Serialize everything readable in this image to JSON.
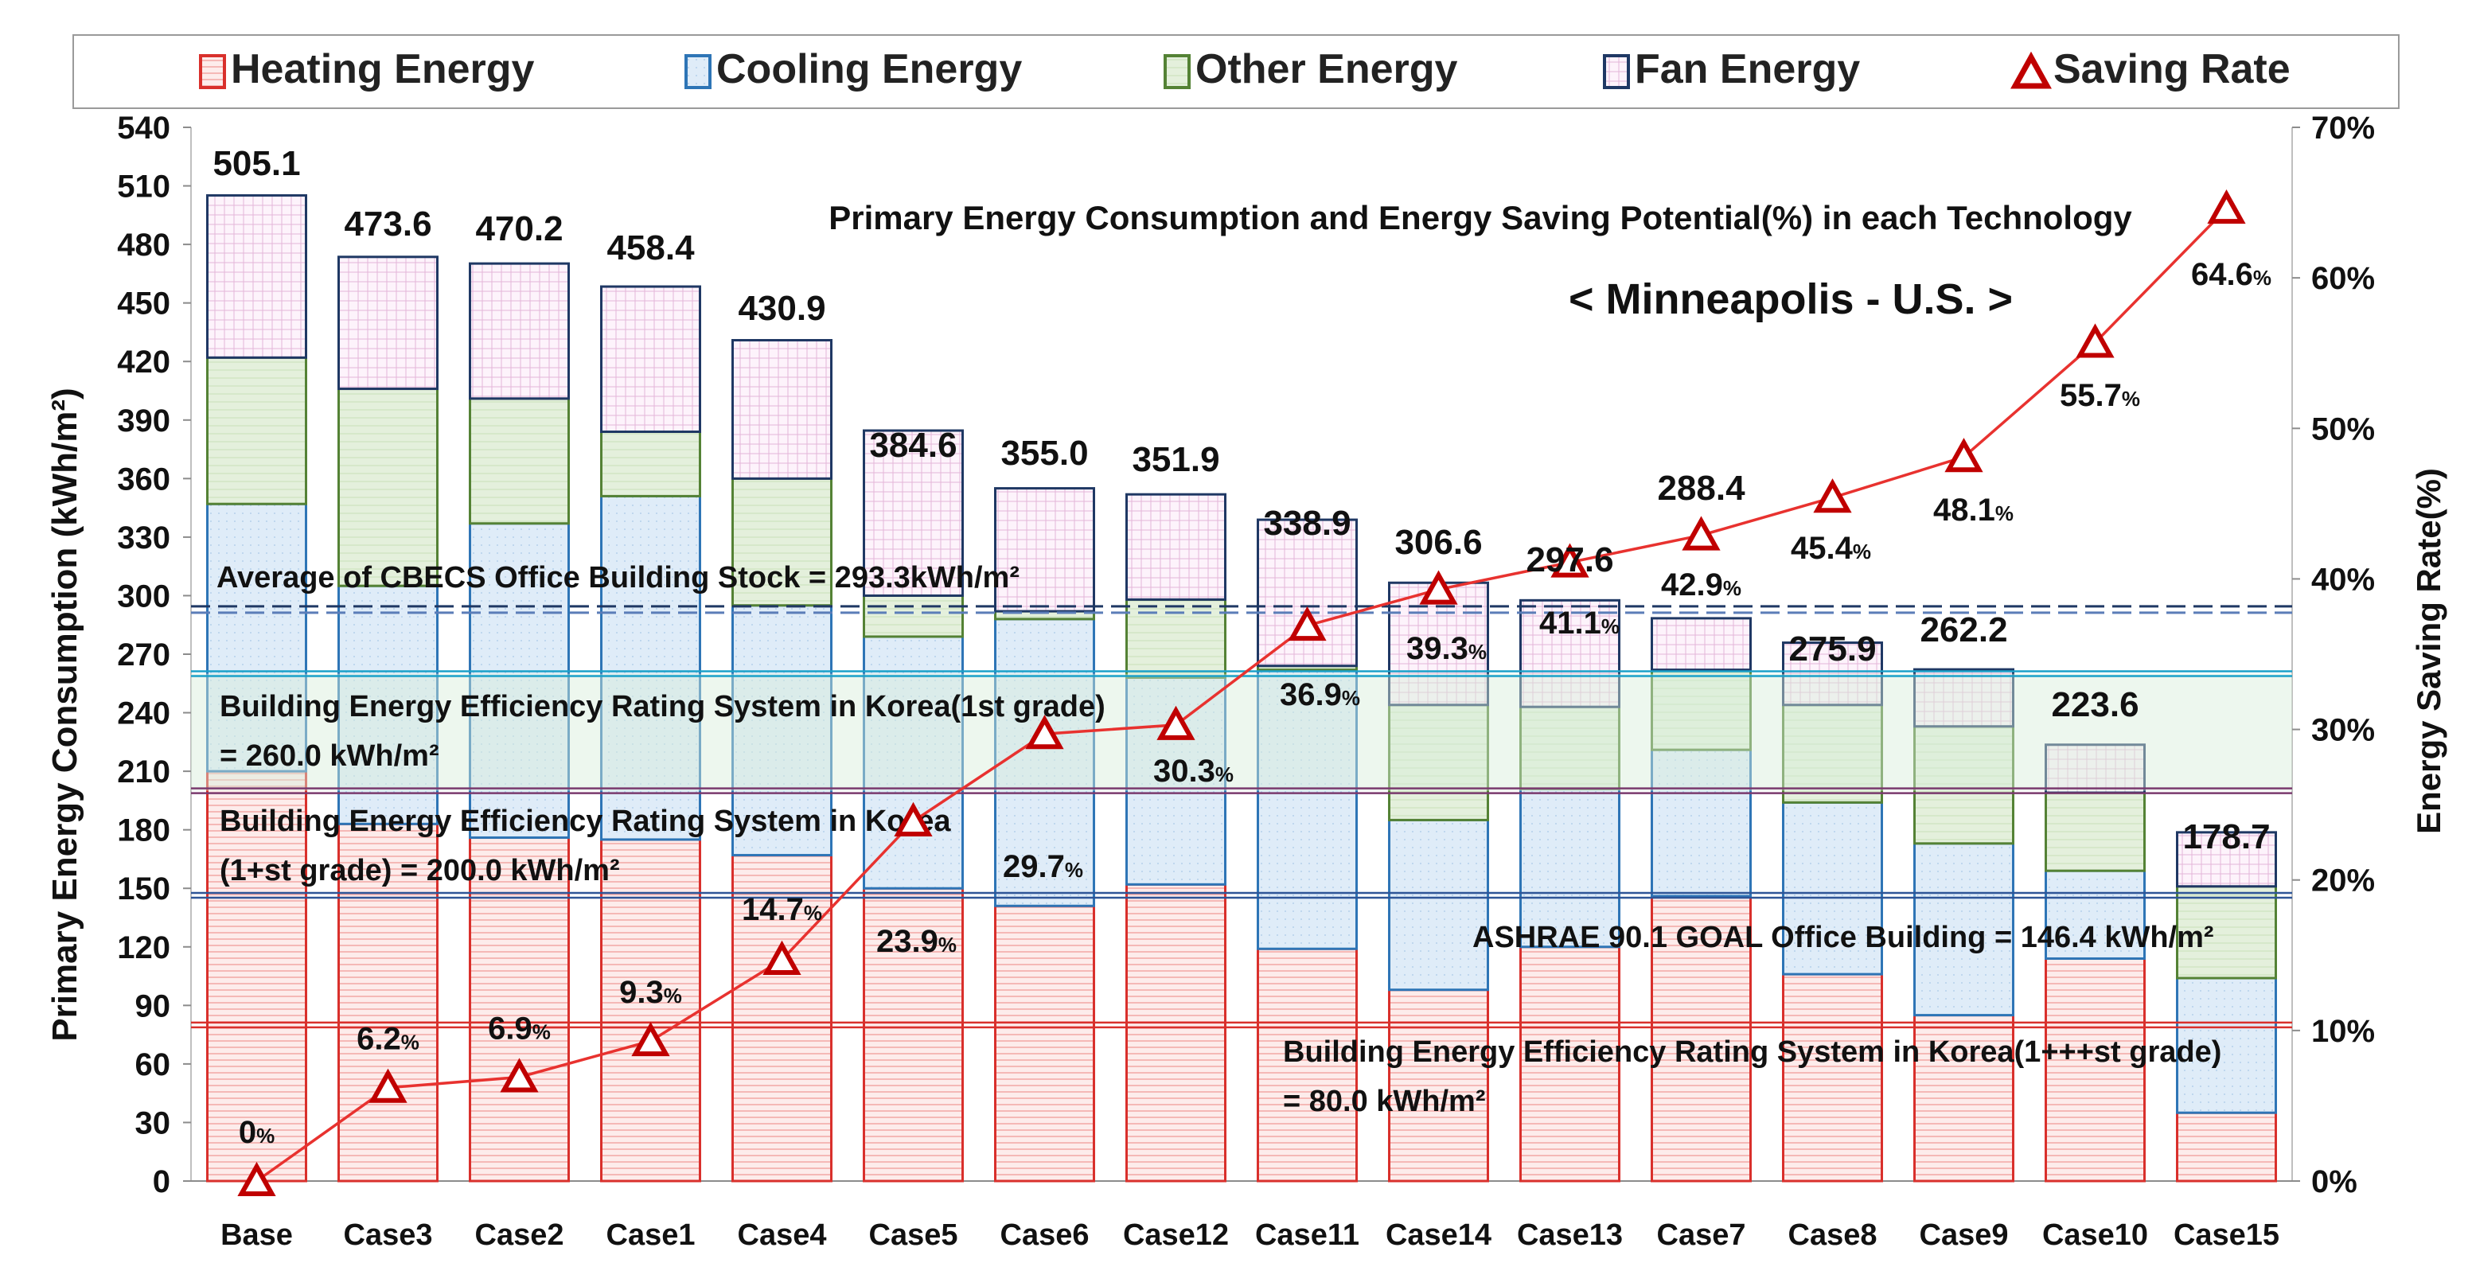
{
  "chart_data": {
    "type": "bar",
    "title": "Primary Energy Consumption and Energy Saving Potential(%) in each Technology",
    "subtitle": "< Minneapolis - U.S. >",
    "ylabel": "Primary Energy Consumption (kWh/m²)",
    "y2label": "Energy Saving Rate(%)",
    "ylim": [
      0,
      540
    ],
    "y2lim": [
      0,
      70
    ],
    "yticks": [
      "0",
      "30",
      "60",
      "90",
      "120",
      "150",
      "180",
      "210",
      "240",
      "270",
      "300",
      "330",
      "360",
      "390",
      "420",
      "450",
      "480",
      "510",
      "540"
    ],
    "y2ticks": [
      "0%",
      "10%",
      "20%",
      "30%",
      "40%",
      "50%",
      "60%",
      "70%"
    ],
    "categories": [
      "Base",
      "Case3",
      "Case2",
      "Case1",
      "Case4",
      "Case5",
      "Case6",
      "Case12",
      "Case11",
      "Case14",
      "Case13",
      "Case7",
      "Case8",
      "Case9",
      "Case10",
      "Case15"
    ],
    "legend_position": "top",
    "legend": [
      {
        "key": "heating",
        "label": "Heating Energy",
        "color": "#d9302c",
        "fill": "#fde9e8",
        "marker": "square"
      },
      {
        "key": "cooling",
        "label": "Cooling Energy",
        "color": "#2e75b6",
        "fill": "#deebf7",
        "marker": "square"
      },
      {
        "key": "other",
        "label": "Other Energy",
        "color": "#548235",
        "fill": "#e2efda",
        "marker": "square"
      },
      {
        "key": "fan",
        "label": "Fan Energy",
        "color": "#1f3864",
        "fill": "#fbeaf6",
        "marker": "square"
      },
      {
        "key": "saving",
        "label": "Saving Rate",
        "color": "#c00000",
        "marker": "triangle"
      }
    ],
    "series": [
      {
        "name": "Heating Energy",
        "key": "heating",
        "values": [
          210,
          183,
          176,
          175,
          167,
          150,
          141,
          152,
          119,
          98,
          120,
          146,
          106,
          85,
          114,
          35
        ]
      },
      {
        "name": "Cooling Energy",
        "key": "cooling",
        "values": [
          137,
          122,
          161,
          176,
          128,
          129,
          147,
          106,
          143,
          87,
          81,
          75,
          88,
          88,
          45,
          69
        ]
      },
      {
        "name": "Other Energy",
        "key": "other",
        "values": [
          75,
          101,
          64,
          33,
          65,
          21,
          4,
          40,
          2,
          59,
          42,
          41,
          50,
          60,
          40,
          47
        ]
      },
      {
        "name": "Fan Energy",
        "key": "fan",
        "values": [
          83.1,
          67.6,
          69.2,
          74.4,
          70.9,
          84.6,
          63,
          53.9,
          74.9,
          62.6,
          54.6,
          26.4,
          31.9,
          29.2,
          24.6,
          27.7
        ]
      }
    ],
    "totals": [
      "505.1",
      "473.6",
      "470.2",
      "458.4",
      "430.9",
      "384.6",
      "355.0",
      "351.9",
      "338.9",
      "306.6",
      "297.6",
      "288.4",
      "275.9",
      "262.2",
      "223.6",
      "178.7"
    ],
    "saving_rate": {
      "name": "Saving Rate",
      "values": [
        0,
        6.2,
        6.9,
        9.3,
        14.7,
        23.9,
        29.7,
        30.3,
        36.9,
        39.3,
        41.1,
        42.9,
        45.4,
        48.1,
        55.7,
        64.6
      ],
      "labels": [
        "0",
        "6.2",
        "6.9",
        "9.3",
        "14.7",
        "23.9",
        "29.7",
        "30.3",
        "36.9",
        "39.3",
        "41.1",
        "42.9",
        "45.4",
        "48.1",
        "55.7",
        "64.6"
      ],
      "unit": "%"
    },
    "reference_lines": [
      {
        "value": 293.3,
        "style": "dashed",
        "color": "#1f3864",
        "text": "Average of CBECS Office Building Stock = 293.3kWh/m²"
      },
      {
        "value": 260.0,
        "style": "solid",
        "color": "#1ba1c9",
        "band_to": 200.0,
        "text": "Building Energy Efficiency Rating System in Korea(1st grade)",
        "text2": "= 260.0 kWh/m²"
      },
      {
        "value": 200.0,
        "style": "solid",
        "color": "#7a3a6e",
        "text": "Building Energy Efficiency Rating System in Korea",
        "text2": "(1+st grade) = 200.0 kWh/m²"
      },
      {
        "value": 146.4,
        "style": "solid",
        "color": "#2e5597",
        "text": "ASHRAE 90.1 GOAL Office Building = 146.4 kWh/m²"
      },
      {
        "value": 80.0,
        "style": "solid",
        "color": "#d9302c",
        "text": "Building Energy Efficiency Rating System in Korea(1+++st grade)",
        "text2": "= 80.0 kWh/m²"
      }
    ]
  }
}
